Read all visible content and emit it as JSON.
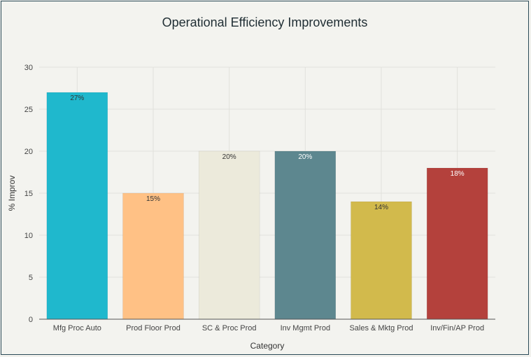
{
  "chart_data": {
    "type": "bar",
    "title": "Operational Efficiency Improvements",
    "xlabel": "Category",
    "ylabel": "% Improv",
    "ylim": [
      0,
      30
    ],
    "yticks": [
      0,
      5,
      10,
      15,
      20,
      25,
      30
    ],
    "categories": [
      "Mfg Proc Auto",
      "Prod Floor Prod",
      "SC & Proc Prod",
      "Inv Mgmt Prod",
      "Sales & Mktg Prod",
      "Inv/Fin/AP Prod"
    ],
    "values": [
      27,
      15,
      20,
      20,
      14,
      18
    ],
    "data_labels": [
      "27%",
      "15%",
      "20%",
      "20%",
      "14%",
      "18%"
    ],
    "colors": [
      "#1fb8cd",
      "#ffc185",
      "#eceadb",
      "#5d878f",
      "#d2ba4c",
      "#b4413c"
    ],
    "label_colors": [
      "#333333",
      "#333333",
      "#333333",
      "#ffffff",
      "#333333",
      "#ffffff"
    ],
    "grid": true,
    "legend": "none"
  }
}
